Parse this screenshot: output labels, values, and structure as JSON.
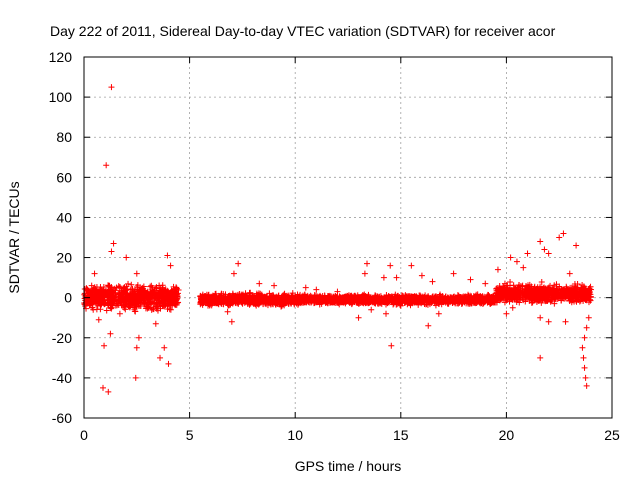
{
  "chart_data": {
    "type": "scatter",
    "title": "Day 222 of 2011, Sidereal Day-to-day VTEC variation (SDTVAR) for receiver acor",
    "xlabel": "GPS time / hours",
    "ylabel": "SDTVAR / TECUs",
    "xlim": [
      0,
      25
    ],
    "ylim": [
      -60,
      120
    ],
    "xticks": [
      0,
      5,
      10,
      15,
      20,
      25
    ],
    "yticks": [
      -60,
      -40,
      -20,
      0,
      20,
      40,
      60,
      80,
      100,
      120
    ],
    "grid": true,
    "marker": "+",
    "colors": {
      "points": "#ff0000",
      "axes": "#000000",
      "grid": "#a0a0a0"
    },
    "series": [
      {
        "name": "SDTVAR",
        "note": "dense band of points; band segments are summarized as x ranges with y spread",
        "bands": [
          {
            "x": [
              0.0,
              4.5
            ],
            "y_center": 0,
            "y_spread": 8
          },
          {
            "x": [
              5.5,
              10.0
            ],
            "y_center": -1,
            "y_spread": 4
          },
          {
            "x": [
              10.0,
              19.5
            ],
            "y_center": -1,
            "y_spread": 3
          },
          {
            "x": [
              19.5,
              24.0
            ],
            "y_center": 2,
            "y_spread": 6
          }
        ],
        "points": [
          [
            1.3,
            105
          ],
          [
            1.05,
            66
          ],
          [
            0.9,
            -45
          ],
          [
            1.15,
            -47
          ],
          [
            0.95,
            -24
          ],
          [
            1.25,
            -18
          ],
          [
            1.4,
            27
          ],
          [
            1.3,
            23
          ],
          [
            0.5,
            12
          ],
          [
            2.45,
            -40
          ],
          [
            2.5,
            -25
          ],
          [
            2.6,
            -20
          ],
          [
            3.6,
            -30
          ],
          [
            3.8,
            -25
          ],
          [
            4.0,
            -33
          ],
          [
            3.95,
            21
          ],
          [
            4.1,
            16
          ],
          [
            2.0,
            20
          ],
          [
            2.5,
            12
          ],
          [
            0.7,
            -11
          ],
          [
            1.7,
            -8
          ],
          [
            3.4,
            -13
          ],
          [
            7.3,
            17
          ],
          [
            7.1,
            12
          ],
          [
            6.8,
            -7
          ],
          [
            7.0,
            -12
          ],
          [
            8.3,
            7
          ],
          [
            9.0,
            6
          ],
          [
            10.5,
            5
          ],
          [
            11.0,
            4
          ],
          [
            12.0,
            3
          ],
          [
            13.4,
            17
          ],
          [
            13.3,
            12
          ],
          [
            13.6,
            -6
          ],
          [
            13.0,
            -10
          ],
          [
            14.2,
            10
          ],
          [
            14.5,
            16
          ],
          [
            14.8,
            10
          ],
          [
            15.5,
            16
          ],
          [
            14.55,
            -24
          ],
          [
            14.3,
            -8
          ],
          [
            15.0,
            -4
          ],
          [
            16.0,
            11
          ],
          [
            16.5,
            8
          ],
          [
            16.3,
            -14
          ],
          [
            16.8,
            -8
          ],
          [
            17.5,
            12
          ],
          [
            18.3,
            9
          ],
          [
            19.0,
            7
          ],
          [
            19.6,
            14
          ],
          [
            20.2,
            20
          ],
          [
            20.5,
            18
          ],
          [
            20.8,
            15
          ],
          [
            21.0,
            22
          ],
          [
            21.6,
            28
          ],
          [
            21.8,
            24
          ],
          [
            22.0,
            22
          ],
          [
            22.5,
            30
          ],
          [
            22.7,
            32
          ],
          [
            23.3,
            26
          ],
          [
            23.0,
            12
          ],
          [
            21.6,
            -30
          ],
          [
            21.6,
            -10
          ],
          [
            22.0,
            -12
          ],
          [
            22.8,
            -12
          ],
          [
            20.3,
            -5
          ],
          [
            20.0,
            -8
          ],
          [
            23.8,
            -44
          ],
          [
            23.75,
            -40
          ],
          [
            23.7,
            -35
          ],
          [
            23.65,
            -30
          ],
          [
            23.6,
            -25
          ],
          [
            23.7,
            -20
          ],
          [
            23.8,
            -15
          ],
          [
            23.9,
            -10
          ]
        ]
      }
    ]
  }
}
